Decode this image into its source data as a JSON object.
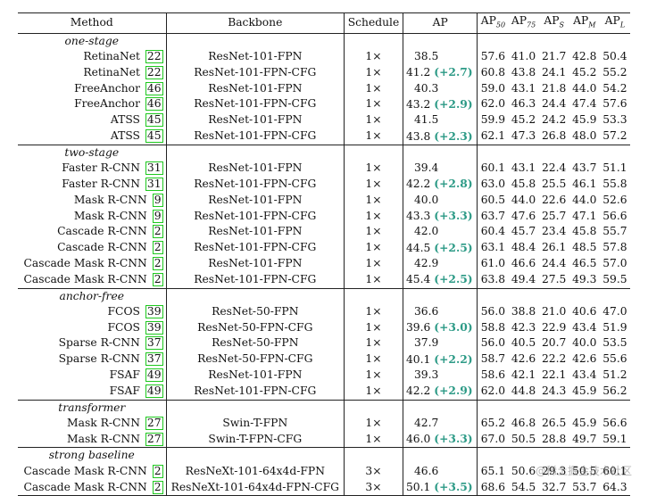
{
  "headers": {
    "method": "Method",
    "backbone": "Backbone",
    "schedule": "Schedule",
    "ap": "AP",
    "ap50": "AP",
    "ap50_sub": "50",
    "ap75": "AP",
    "ap75_sub": "75",
    "aps": "AP",
    "aps_sub": "S",
    "apm": "AP",
    "apm_sub": "M",
    "apl": "AP",
    "apl_sub": "L"
  },
  "groups": [
    {
      "name": "one-stage",
      "rows": [
        {
          "method": "RetinaNet",
          "ref": "22",
          "backbone": "ResNet-101-FPN",
          "schedule": "1×",
          "ap": "38.5",
          "gain": "",
          "ap50": "57.6",
          "ap75": "41.0",
          "aps": "21.7",
          "apm": "42.8",
          "apl": "50.4"
        },
        {
          "method": "RetinaNet",
          "ref": "22",
          "backbone": "ResNet-101-FPN-CFG",
          "schedule": "1×",
          "ap": "41.2",
          "gain": "(+2.7)",
          "ap50": "60.8",
          "ap75": "43.8",
          "aps": "24.1",
          "apm": "45.2",
          "apl": "55.2"
        },
        {
          "method": "FreeAnchor",
          "ref": "46",
          "backbone": "ResNet-101-FPN",
          "schedule": "1×",
          "ap": "40.3",
          "gain": "",
          "ap50": "59.0",
          "ap75": "43.1",
          "aps": "21.8",
          "apm": "44.0",
          "apl": "54.2"
        },
        {
          "method": "FreeAnchor",
          "ref": "46",
          "backbone": "ResNet-101-FPN-CFG",
          "schedule": "1×",
          "ap": "43.2",
          "gain": "(+2.9)",
          "ap50": "62.0",
          "ap75": "46.3",
          "aps": "24.4",
          "apm": "47.4",
          "apl": "57.6"
        },
        {
          "method": "ATSS",
          "ref": "45",
          "backbone": "ResNet-101-FPN",
          "schedule": "1×",
          "ap": "41.5",
          "gain": "",
          "ap50": "59.9",
          "ap75": "45.2",
          "aps": "24.2",
          "apm": "45.9",
          "apl": "53.3"
        },
        {
          "method": "ATSS",
          "ref": "45",
          "backbone": "ResNet-101-FPN-CFG",
          "schedule": "1×",
          "ap": "43.8",
          "gain": "(+2.3)",
          "ap50": "62.1",
          "ap75": "47.3",
          "aps": "26.8",
          "apm": "48.0",
          "apl": "57.2"
        }
      ]
    },
    {
      "name": "two-stage",
      "rows": [
        {
          "method": "Faster R-CNN",
          "ref": "31",
          "backbone": "ResNet-101-FPN",
          "schedule": "1×",
          "ap": "39.4",
          "gain": "",
          "ap50": "60.1",
          "ap75": "43.1",
          "aps": "22.4",
          "apm": "43.7",
          "apl": "51.1"
        },
        {
          "method": "Faster R-CNN",
          "ref": "31",
          "backbone": "ResNet-101-FPN-CFG",
          "schedule": "1×",
          "ap": "42.2",
          "gain": "(+2.8)",
          "ap50": "63.0",
          "ap75": "45.8",
          "aps": "25.5",
          "apm": "46.1",
          "apl": "55.8"
        },
        {
          "method": "Mask R-CNN",
          "ref": "9",
          "backbone": "ResNet-101-FPN",
          "schedule": "1×",
          "ap": "40.0",
          "gain": "",
          "ap50": "60.5",
          "ap75": "44.0",
          "aps": "22.6",
          "apm": "44.0",
          "apl": "52.6"
        },
        {
          "method": "Mask R-CNN",
          "ref": "9",
          "backbone": "ResNet-101-FPN-CFG",
          "schedule": "1×",
          "ap": "43.3",
          "gain": "(+3.3)",
          "ap50": "63.7",
          "ap75": "47.6",
          "aps": "25.7",
          "apm": "47.1",
          "apl": "56.6"
        },
        {
          "method": "Cascade R-CNN",
          "ref": "2",
          "backbone": "ResNet-101-FPN",
          "schedule": "1×",
          "ap": "42.0",
          "gain": "",
          "ap50": "60.4",
          "ap75": "45.7",
          "aps": "23.4",
          "apm": "45.8",
          "apl": "55.7"
        },
        {
          "method": "Cascade R-CNN",
          "ref": "2",
          "backbone": "ResNet-101-FPN-CFG",
          "schedule": "1×",
          "ap": "44.5",
          "gain": "(+2.5)",
          "ap50": "63.1",
          "ap75": "48.4",
          "aps": "26.1",
          "apm": "48.5",
          "apl": "57.8"
        },
        {
          "method": "Cascade Mask R-CNN",
          "ref": "2",
          "backbone": "ResNet-101-FPN",
          "schedule": "1×",
          "ap": "42.9",
          "gain": "",
          "ap50": "61.0",
          "ap75": "46.6",
          "aps": "24.4",
          "apm": "46.5",
          "apl": "57.0"
        },
        {
          "method": "Cascade Mask R-CNN",
          "ref": "2",
          "backbone": "ResNet-101-FPN-CFG",
          "schedule": "1×",
          "ap": "45.4",
          "gain": "(+2.5)",
          "ap50": "63.8",
          "ap75": "49.4",
          "aps": "27.5",
          "apm": "49.3",
          "apl": "59.5"
        }
      ]
    },
    {
      "name": "anchor-free",
      "rows": [
        {
          "method": "FCOS",
          "ref": "39",
          "backbone": "ResNet-50-FPN",
          "schedule": "1×",
          "ap": "36.6",
          "gain": "",
          "ap50": "56.0",
          "ap75": "38.8",
          "aps": "21.0",
          "apm": "40.6",
          "apl": "47.0"
        },
        {
          "method": "FCOS",
          "ref": "39",
          "backbone": "ResNet-50-FPN-CFG",
          "schedule": "1×",
          "ap": "39.6",
          "gain": "(+3.0)",
          "ap50": "58.8",
          "ap75": "42.3",
          "aps": "22.9",
          "apm": "43.4",
          "apl": "51.9"
        },
        {
          "method": "Sparse R-CNN",
          "ref": "37",
          "backbone": "ResNet-50-FPN",
          "schedule": "1×",
          "ap": "37.9",
          "gain": "",
          "ap50": "56.0",
          "ap75": "40.5",
          "aps": "20.7",
          "apm": "40.0",
          "apl": "53.5"
        },
        {
          "method": "Sparse R-CNN",
          "ref": "37",
          "backbone": "ResNet-50-FPN-CFG",
          "schedule": "1×",
          "ap": "40.1",
          "gain": "(+2.2)",
          "ap50": "58.7",
          "ap75": "42.6",
          "aps": "22.2",
          "apm": "42.6",
          "apl": "55.6"
        },
        {
          "method": "FSAF",
          "ref": "49",
          "backbone": "ResNet-101-FPN",
          "schedule": "1×",
          "ap": "39.3",
          "gain": "",
          "ap50": "58.6",
          "ap75": "42.1",
          "aps": "22.1",
          "apm": "43.4",
          "apl": "51.2"
        },
        {
          "method": "FSAF",
          "ref": "49",
          "backbone": "ResNet-101-FPN-CFG",
          "schedule": "1×",
          "ap": "42.2",
          "gain": "(+2.9)",
          "ap50": "62.0",
          "ap75": "44.8",
          "aps": "24.3",
          "apm": "45.9",
          "apl": "56.2"
        }
      ]
    },
    {
      "name": "transformer",
      "rows": [
        {
          "method": "Mask R-CNN",
          "ref": "27",
          "backbone": "Swin-T-FPN",
          "schedule": "1×",
          "ap": "42.7",
          "gain": "",
          "ap50": "65.2",
          "ap75": "46.8",
          "aps": "26.5",
          "apm": "45.9",
          "apl": "56.6"
        },
        {
          "method": "Mask R-CNN",
          "ref": "27",
          "backbone": "Swin-T-FPN-CFG",
          "schedule": "1×",
          "ap": "46.0",
          "gain": "(+3.3)",
          "ap50": "67.0",
          "ap75": "50.5",
          "aps": "28.8",
          "apm": "49.7",
          "apl": "59.1"
        }
      ]
    },
    {
      "name": "strong baseline",
      "rows": [
        {
          "method": "Cascade Mask R-CNN",
          "ref": "2",
          "backbone": "ResNeXt-101-64x4d-FPN",
          "schedule": "3×",
          "ap": "46.6",
          "gain": "",
          "ap50": "65.1",
          "ap75": "50.6",
          "aps": "29.3",
          "apm": "50.5",
          "apl": "60.1"
        },
        {
          "method": "Cascade Mask R-CNN",
          "ref": "2",
          "backbone": "ResNeXt-101-64x4d-FPN-CFG",
          "schedule": "3×",
          "ap": "50.1",
          "gain": "(+3.5)",
          "ap50": "68.6",
          "ap75": "54.5",
          "aps": "32.7",
          "apm": "53.7",
          "apl": "64.3"
        }
      ]
    }
  ],
  "watermark": "@稀土掘金技术社区"
}
